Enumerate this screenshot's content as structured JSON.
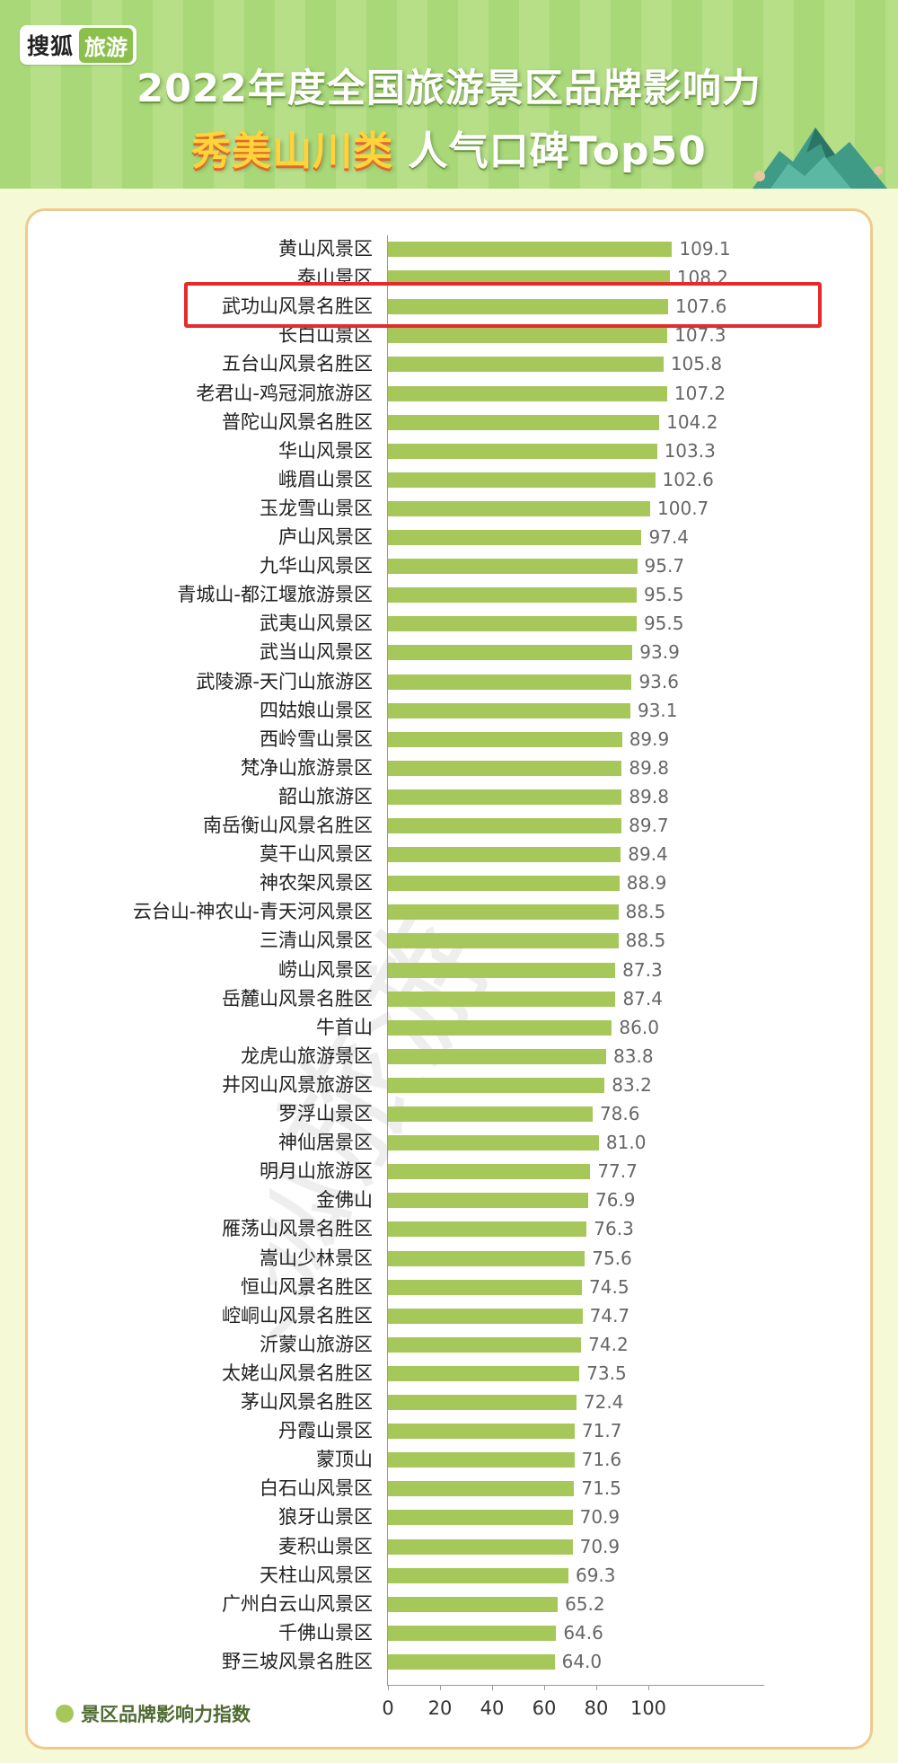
{
  "header": {
    "logo_text": "搜狐",
    "logo_tag": "旅游",
    "title_line1": "2022年度全国旅游景区品牌影响力",
    "title_line2_accent": "秀美山川类",
    "title_line2_rest": "人气口碑Top50"
  },
  "colors": {
    "bar": "#a6c85a",
    "header_green": "#a8d878",
    "highlight_box": "#e52b2b",
    "accent_yellow": "#ffd43a"
  },
  "highlight": "武功山风景名胜区",
  "chart_data": {
    "type": "bar",
    "orientation": "horizontal",
    "categories": [
      "黄山风景区",
      "泰山景区",
      "武功山风景名胜区",
      "长白山景区",
      "五台山风景名胜区",
      "老君山-鸡冠洞旅游区",
      "普陀山风景名胜区",
      "华山风景区",
      "峨眉山景区",
      "玉龙雪山景区",
      "庐山风景区",
      "九华山风景区",
      "青城山-都江堰旅游景区",
      "武夷山风景区",
      "武当山风景区",
      "武陵源-天门山旅游区",
      "四姑娘山景区",
      "西岭雪山景区",
      "梵净山旅游景区",
      "韶山旅游区",
      "南岳衡山风景名胜区",
      "莫干山风景区",
      "神农架风景区",
      "云台山-神农山-青天河风景区",
      "三清山风景区",
      "崂山风景区",
      "岳麓山风景名胜区",
      "牛首山",
      "龙虎山旅游景区",
      "井冈山风景旅游区",
      "罗浮山景区",
      "神仙居景区",
      "明月山旅游区",
      "金佛山",
      "雁荡山风景名胜区",
      "嵩山少林景区",
      "恒山风景名胜区",
      "崆峒山风景名胜区",
      "沂蒙山旅游区",
      "太姥山风景名胜区",
      "茅山风景名胜区",
      "丹霞山景区",
      "蒙顶山",
      "白石山风景区",
      "狼牙山景区",
      "麦积山景区",
      "天柱山风景区",
      "广州白云山风景区",
      "千佛山景区",
      "野三坡风景名胜区"
    ],
    "value_labels": [
      "109.1",
      "108.2",
      "107.6",
      "107.3",
      "105.8",
      "107.2",
      "104.2",
      "103.3",
      "102.6",
      "100.7",
      "97.4",
      "95.7",
      "95.5",
      "95.5",
      "93.9",
      "93.6",
      "93.1",
      "89.9",
      "89.8",
      "89.8",
      "89.7",
      "89.4",
      "88.9",
      "88.5",
      "88.5",
      "87.3",
      "87.4",
      "86.0",
      "83.8",
      "83.2",
      "78.6",
      "81.0",
      "77.7",
      "76.9",
      "76.3",
      "75.6",
      "74.5",
      "74.7",
      "74.2",
      "73.5",
      "72.4",
      "71.7",
      "71.6",
      "71.5",
      "70.9",
      "70.9",
      "69.3",
      "65.2",
      "64.6",
      "64.0"
    ],
    "xlim": [
      0,
      115
    ],
    "xticks": [
      "0",
      "20",
      "40",
      "60",
      "80",
      "100"
    ],
    "legend": [
      {
        "name": "景区品牌影响力指数"
      }
    ],
    "legend_position": "bottom-left",
    "grid": false
  }
}
